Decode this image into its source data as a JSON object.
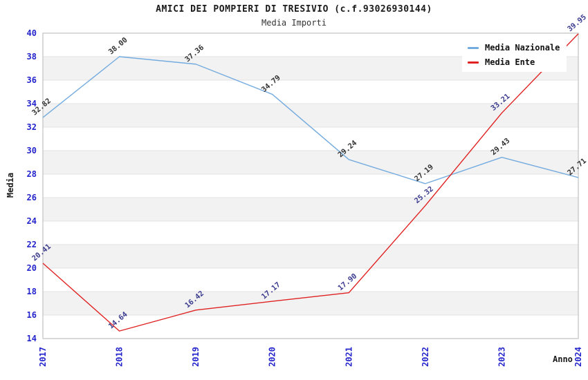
{
  "chart_data": {
    "type": "line",
    "title": "AMICI DEI POMPIERI DI TRESIVIO (c.f.93026930144)",
    "subtitle": "Media Importi",
    "xlabel": "Anno",
    "ylabel": "Media",
    "categories": [
      "2017",
      "2018",
      "2019",
      "2020",
      "2021",
      "2022",
      "2023",
      "2024"
    ],
    "ylim": [
      14,
      40
    ],
    "ytick_step": 2,
    "yticks": [
      14,
      16,
      18,
      20,
      22,
      24,
      26,
      28,
      30,
      32,
      34,
      36,
      38,
      40
    ],
    "grid": "horizontal gridlines with alternating shaded bands",
    "legend_position": "top-right",
    "series": [
      {
        "name": "Media Nazionale",
        "color": "#74abdf",
        "label_color": "#333333",
        "values": [
          32.82,
          38.0,
          37.36,
          34.79,
          29.24,
          27.19,
          29.43,
          27.71
        ],
        "labels": [
          "32.82",
          "38.00",
          "37.36",
          "34.79",
          "29.24",
          "27.19",
          "29.43",
          "27.71"
        ]
      },
      {
        "name": "Media Ente",
        "color": "#e02222",
        "label_color": "#3c3c8f",
        "values": [
          20.41,
          14.64,
          16.42,
          17.17,
          17.9,
          25.32,
          33.21,
          39.95
        ],
        "labels": [
          "20.41",
          "14.64",
          "16.42",
          "17.17",
          "17.90",
          "25.32",
          "33.21",
          "39.95"
        ]
      }
    ],
    "style": {
      "tick_label_color": "#2424cc",
      "band_color": "#f2f2f2",
      "gridline_color": "#e3e3e3",
      "border_color": "#c9c9c9",
      "background": "#ffffff"
    }
  }
}
